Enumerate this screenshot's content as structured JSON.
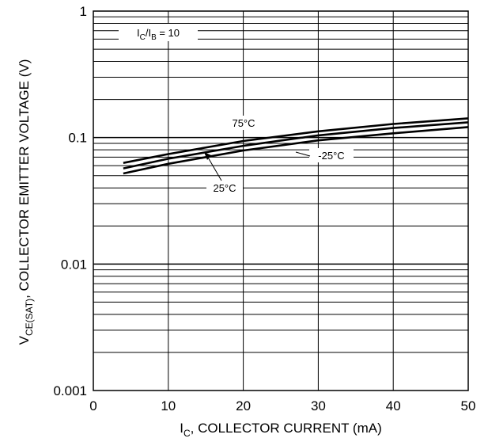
{
  "chart_data": {
    "type": "line",
    "title": "",
    "xlabel": {
      "main": "I",
      "sub": "C",
      "rest": ", COLLECTOR CURRENT (mA)"
    },
    "ylabel": {
      "main": "V",
      "sub": "CE(SAT)",
      "rest": ", COLLECTOR EMITTER VOLTAGE (V)"
    },
    "xlim": [
      0,
      50
    ],
    "ylim": [
      0.001,
      1
    ],
    "y_scale": "log",
    "grid": true,
    "x_ticks": [
      {
        "value": 0,
        "label": "0"
      },
      {
        "value": 10,
        "label": "10"
      },
      {
        "value": 20,
        "label": "20"
      },
      {
        "value": 30,
        "label": "30"
      },
      {
        "value": 40,
        "label": "40"
      },
      {
        "value": 50,
        "label": "50"
      }
    ],
    "y_ticks": [
      {
        "value": 1,
        "label": "1"
      },
      {
        "value": 0.1,
        "label": "0.1"
      },
      {
        "value": 0.01,
        "label": "0.01"
      },
      {
        "value": 0.001,
        "label": "0.001"
      }
    ],
    "condition": {
      "a": "I",
      "a_sub": "C",
      "sep": "/I",
      "b_sub": "B",
      "rest": " = 10"
    },
    "series": [
      {
        "name": "75°C",
        "x": [
          4,
          10,
          20,
          30,
          40,
          50
        ],
        "y": [
          0.063,
          0.074,
          0.094,
          0.112,
          0.128,
          0.142
        ]
      },
      {
        "name": "25°C",
        "x": [
          4,
          10,
          20,
          30,
          40,
          50
        ],
        "y": [
          0.057,
          0.068,
          0.086,
          0.104,
          0.119,
          0.132
        ]
      },
      {
        "name": "-25°C",
        "x": [
          4,
          10,
          20,
          30,
          40,
          50
        ],
        "y": [
          0.052,
          0.062,
          0.079,
          0.095,
          0.108,
          0.121
        ]
      }
    ]
  }
}
